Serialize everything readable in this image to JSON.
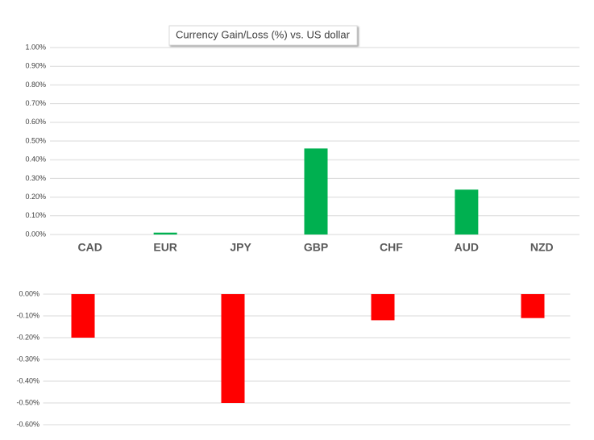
{
  "chart_data": [
    {
      "type": "bar",
      "title": "Currency  Gain/Loss (%) vs. US dollar",
      "categories": [
        "CAD",
        "EUR",
        "JPY",
        "GBP",
        "CHF",
        "AUD",
        "NZD"
      ],
      "values": [
        null,
        0.01,
        null,
        0.46,
        null,
        0.24,
        null
      ],
      "color": "#00b050",
      "ylim": [
        0,
        1.0
      ],
      "yticks": [
        {
          "value": 0,
          "label": "0.00%"
        },
        {
          "value": 0.1,
          "label": "0.10%"
        },
        {
          "value": 0.2,
          "label": "0.20%"
        },
        {
          "value": 0.3,
          "label": "0.30%"
        },
        {
          "value": 0.4,
          "label": "0.40%"
        },
        {
          "value": 0.5,
          "label": "0.50%"
        },
        {
          "value": 0.6,
          "label": "0.60%"
        },
        {
          "value": 0.7,
          "label": "0.70%"
        },
        {
          "value": 0.8,
          "label": "0.80%"
        },
        {
          "value": 0.9,
          "label": "0.90%"
        },
        {
          "value": 1.0,
          "label": "1.00%"
        }
      ],
      "grid": true
    },
    {
      "type": "bar",
      "categories": [
        null,
        null,
        null,
        null,
        null,
        null,
        null
      ],
      "values": [
        -0.2,
        null,
        -0.5,
        null,
        -0.12,
        null,
        -0.11
      ],
      "color": "#ff0000",
      "ylim": [
        -0.6,
        0
      ],
      "yticks": [
        {
          "value": 0,
          "label": "0.00%"
        },
        {
          "value": -0.1,
          "label": "-0.10%"
        },
        {
          "value": -0.2,
          "label": "-0.20%"
        },
        {
          "value": -0.3,
          "label": "-0.30%"
        },
        {
          "value": -0.4,
          "label": "-0.40%"
        },
        {
          "value": -0.5,
          "label": "-0.50%"
        },
        {
          "value": -0.6,
          "label": "-0.60%"
        }
      ],
      "grid": true
    }
  ]
}
